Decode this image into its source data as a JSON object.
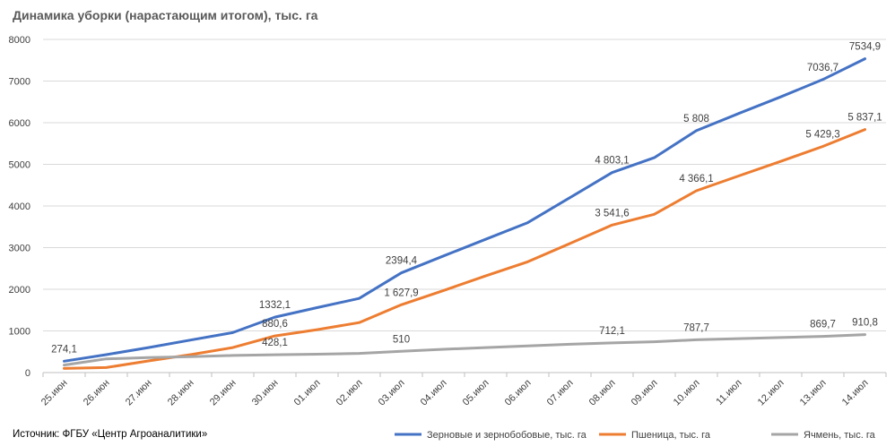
{
  "title": "Динамика уборки (нарастающим итогом), тыс. га",
  "source": "Источник: ФГБУ «Центр Агроаналитики»",
  "chart_data": {
    "type": "line",
    "title": "Динамика уборки (нарастающим итогом), тыс. га",
    "xlabel": "",
    "ylabel": "",
    "ylim": [
      0,
      8000
    ],
    "yticks": [
      "0",
      "1000",
      "2000",
      "3000",
      "4000",
      "5000",
      "6000",
      "7000",
      "8000"
    ],
    "grid": true,
    "legend_position": "bottom",
    "categories": [
      "25.июн",
      "26.июн",
      "27.июн",
      "28.июн",
      "29.июн",
      "30.июн",
      "01.июл",
      "02.июл",
      "03.июл",
      "04.июл",
      "05.июл",
      "06.июл",
      "07.июл",
      "08.июл",
      "09.июл",
      "10.июл",
      "11.июл",
      "12.июл",
      "13.июл",
      "14.июл"
    ],
    "series": [
      {
        "name": "Зерновые и зернобобовые, тыс. га",
        "color": "#4472C4",
        "values": [
          274.1,
          430,
          600,
          780,
          960,
          1332.1,
          1560,
          1780,
          2394.4,
          2800,
          3200,
          3600,
          4200,
          4803.1,
          5160,
          5808,
          6220,
          6620,
          7036.7,
          7534.9
        ],
        "labels": {
          "0": "274,1",
          "5": "1332,1",
          "8": "2394,4",
          "13": "4 803,1",
          "15": "5 808",
          "18": "7036,7",
          "19": "7534,9"
        }
      },
      {
        "name": "Пшеница, тыс. га",
        "color": "#ED7D31",
        "values": [
          100,
          120,
          280,
          430,
          600,
          880.6,
          1030,
          1200,
          1627.9,
          1970,
          2320,
          2660,
          3100,
          3541.6,
          3800,
          4366.1,
          4720,
          5070,
          5429.3,
          5837.1
        ],
        "labels": {
          "5": "880,6",
          "8": "1 627,9",
          "13": "3 541,6",
          "15": "4 366,1",
          "18": "5 429,3",
          "19": "5 837,1"
        }
      },
      {
        "name": "Ячмень, тыс. га",
        "color": "#A5A5A5",
        "values": [
          180,
          330,
          360,
          380,
          410,
          428.1,
          440,
          460,
          510,
          560,
          600,
          640,
          680,
          712.1,
          740,
          787.7,
          815,
          840,
          869.7,
          910.8
        ],
        "labels": {
          "5": "428,1",
          "8": "510",
          "13": "712,1",
          "15": "787,7",
          "18": "869,7",
          "19": "910,8"
        }
      }
    ]
  }
}
